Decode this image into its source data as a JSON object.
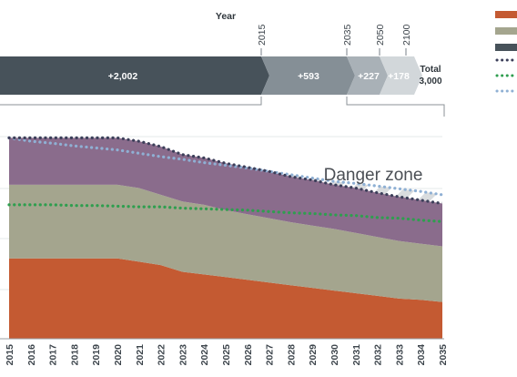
{
  "chart_data": {
    "type": "area",
    "header": {
      "axis_label": "Year",
      "year_ticks": [
        "2015",
        "2035",
        "2050",
        "2100"
      ],
      "segments": [
        {
          "label": "+2,002",
          "value": 2002,
          "color": "#47525a"
        },
        {
          "label": "+593",
          "value": 593,
          "color": "#858f96"
        },
        {
          "label": "+227",
          "value": 227,
          "color": "#a9b1b7"
        },
        {
          "label": "+178",
          "value": 178,
          "color": "#d2d7da"
        }
      ],
      "total_label": "Total",
      "total_value": "3,000"
    },
    "annotation": "Danger zone",
    "x": [
      "2015",
      "2016",
      "2017",
      "2018",
      "2019",
      "2020",
      "2021",
      "2022",
      "2023",
      "2024",
      "2025",
      "2026",
      "2027",
      "2028",
      "2029",
      "2030",
      "2031",
      "2032",
      "2033",
      "2034",
      "2035"
    ],
    "ylim": [
      0,
      3.25
    ],
    "series": [
      {
        "values": [
          1.2,
          1.2,
          1.2,
          1.2,
          1.2,
          1.2,
          1.15,
          1.1,
          1.0,
          0.96,
          0.92,
          0.88,
          0.84,
          0.8,
          0.76,
          0.72,
          0.68,
          0.64,
          0.6,
          0.58,
          0.55
        ],
        "color": "#c45a32"
      },
      {
        "values": [
          1.1,
          1.1,
          1.1,
          1.1,
          1.1,
          1.1,
          1.1,
          1.05,
          1.05,
          1.04,
          1.0,
          0.98,
          0.96,
          0.94,
          0.93,
          0.92,
          0.9,
          0.88,
          0.86,
          0.84,
          0.83
        ],
        "color": "#a4a58e"
      },
      {
        "values": [
          0.7,
          0.7,
          0.7,
          0.7,
          0.7,
          0.7,
          0.7,
          0.72,
          0.7,
          0.7,
          0.7,
          0.7,
          0.7,
          0.68,
          0.68,
          0.66,
          0.67,
          0.66,
          0.66,
          0.65,
          0.64
        ],
        "color": "#8a6c8c"
      }
    ],
    "lines": [
      {
        "values": [
          3.0,
          2.95,
          2.92,
          2.88,
          2.85,
          2.82,
          2.77,
          2.72,
          2.68,
          2.63,
          2.59,
          2.55,
          2.5,
          2.45,
          2.4,
          2.35,
          2.32,
          2.28,
          2.24,
          2.2,
          2.15
        ],
        "color": "#8fb0d4"
      },
      {
        "values": [
          2.0,
          2.0,
          2.0,
          1.99,
          1.99,
          1.98,
          1.97,
          1.97,
          1.95,
          1.94,
          1.93,
          1.92,
          1.9,
          1.88,
          1.87,
          1.85,
          1.84,
          1.81,
          1.8,
          1.77,
          1.75
        ],
        "color": "#2f9e4f"
      },
      {
        "values": [
          3.0,
          3.0,
          3.0,
          3.0,
          3.0,
          3.0,
          2.95,
          2.87,
          2.75,
          2.7,
          2.62,
          2.56,
          2.5,
          2.42,
          2.37,
          2.3,
          2.25,
          2.18,
          2.12,
          2.07,
          2.02
        ],
        "color": "#3c3f5a"
      }
    ],
    "legend": {
      "placement": "top-right",
      "swatches": [
        "#c45a32",
        "#a4a58e",
        "#47525a"
      ],
      "line_keys": [
        "#3c3f5a",
        "#2f9e4f",
        "#8fb0d4"
      ]
    }
  }
}
